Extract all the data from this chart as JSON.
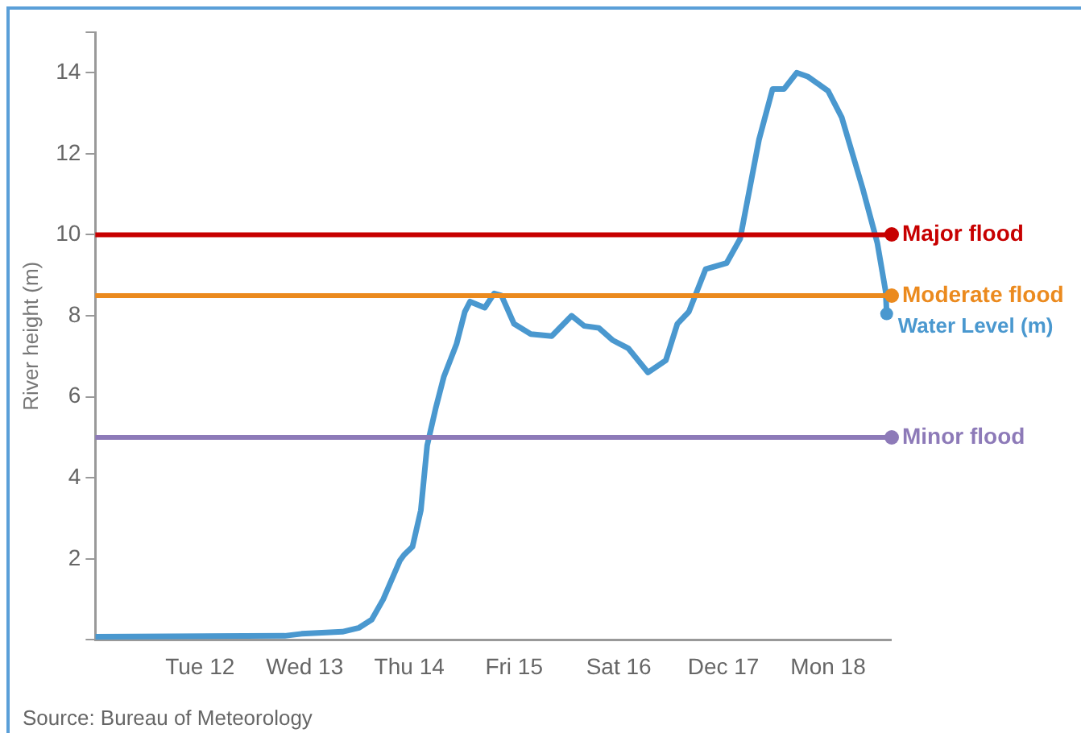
{
  "chart_data": {
    "type": "line",
    "ylabel": "River height (m)",
    "x": [
      "--12-11T00:00",
      "--12-12T19:26",
      "--12-12T23:17",
      "--12-13T08:38",
      "--12-13T12:29",
      "--12-13T15:22",
      "--12-13T18:00",
      "--12-13T21:50",
      "--12-13T22:48",
      "--12-14T00:43",
      "--12-14T02:38",
      "--12-14T04:05",
      "--12-14T06:00",
      "--12-14T07:55",
      "--12-14T10:48",
      "--12-14T12:43",
      "--12-14T13:55",
      "--12-14T17:17",
      "--12-14T19:26",
      "--12-14T21:07",
      "--12-15T00:00",
      "--12-15T03:50",
      "--12-15T08:38",
      "--12-15T13:12",
      "--12-15T16:05",
      "--12-15T19:26",
      "--12-15T22:34",
      "--12-16T02:10",
      "--12-16T06:43",
      "--12-16T10:48",
      "--12-16T13:26",
      "--12-16T16:05",
      "--12-16T19:55",
      "--12-17T00:43",
      "--12-17T03:50",
      "--12-17T08:10",
      "--12-17T11:17",
      "--12-17T13:55",
      "--12-17T16:48",
      "--12-17T19:26",
      "--12-18T00:00",
      "--12-18T03:07",
      "--12-18T07:55",
      "--12-18T11:17",
      "--12-18T13:12",
      "--12-18T13:26"
    ],
    "series": [
      {
        "name": "Water Level (m)",
        "color": "#4a98cf",
        "values": [
          0.08,
          0.1,
          0.15,
          0.2,
          0.3,
          0.5,
          1.0,
          1.96,
          2.1,
          2.3,
          3.2,
          4.8,
          5.7,
          6.5,
          7.3,
          8.1,
          8.35,
          8.2,
          8.55,
          8.5,
          7.8,
          7.55,
          7.5,
          8.0,
          7.75,
          7.7,
          7.4,
          7.2,
          6.6,
          6.9,
          7.8,
          8.1,
          9.15,
          9.3,
          9.9,
          12.35,
          13.6,
          13.6,
          14.0,
          13.9,
          13.55,
          12.9,
          11.15,
          9.8,
          8.6,
          8.05
        ]
      }
    ],
    "xlim": [
      "--12-11T00:00",
      "--12-18T14:24"
    ],
    "xticks": [
      {
        "value": "--12-11",
        "label": null
      },
      {
        "value": "--12-12",
        "label": "Tue 12"
      },
      {
        "value": "--12-13",
        "label": "Wed 13"
      },
      {
        "value": "--12-14",
        "label": "Thu 14"
      },
      {
        "value": "--12-15",
        "label": "Fri 15"
      },
      {
        "value": "--12-16",
        "label": "Sat 16"
      },
      {
        "value": "--12-17",
        "label": "Dec 17"
      },
      {
        "value": "--12-18",
        "label": "Mon 18"
      }
    ],
    "ylim": [
      0,
      15
    ],
    "yticks": [
      {
        "value": 0,
        "label": null
      },
      2,
      4,
      6,
      8,
      10,
      12,
      14,
      {
        "value": 15,
        "label": null
      }
    ],
    "ref_lines": [
      {
        "axis": "y",
        "value": 10,
        "label": "Major flood",
        "color": "#c70000"
      },
      {
        "axis": "y",
        "value": 8.5,
        "label": "Moderate flood",
        "color": "#eb8a1e"
      },
      {
        "axis": "y",
        "value": 5,
        "label": "Minor flood",
        "color": "#8d7ab8"
      }
    ],
    "annotations": [
      "Source: Bureau of Meteorology"
    ],
    "grid": false,
    "legend": false,
    "marker": "none",
    "line_style": "solid"
  }
}
